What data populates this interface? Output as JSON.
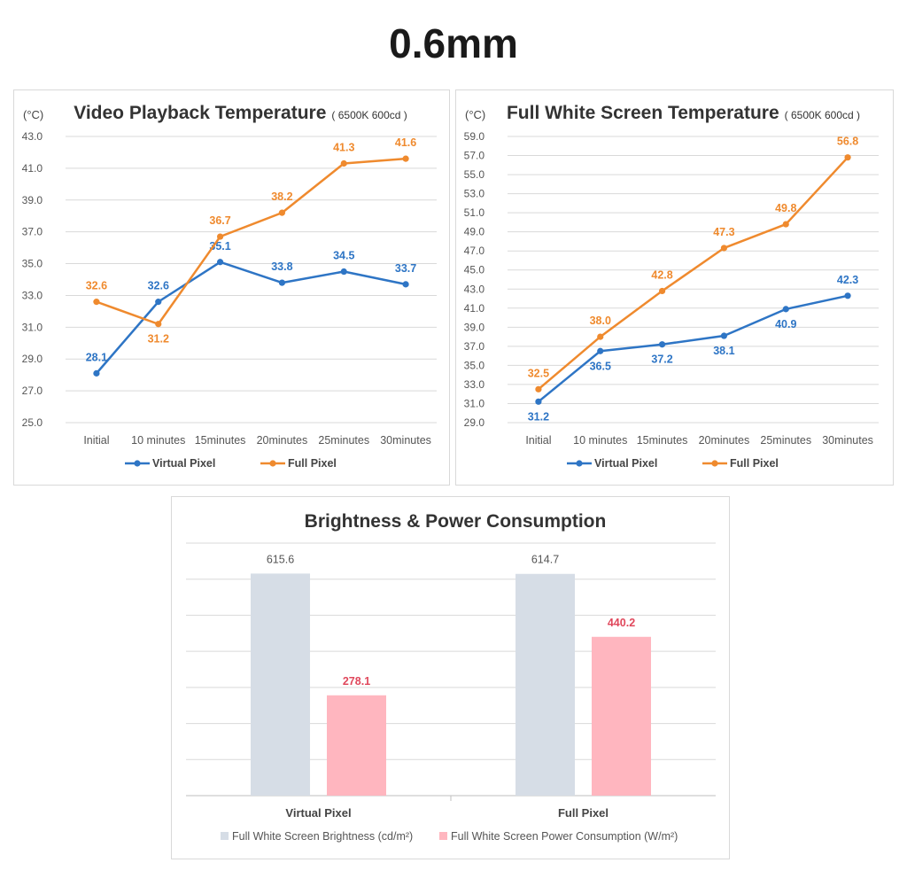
{
  "page_title": "0.6mm",
  "colors": {
    "virtual": "#2e75c5",
    "full": "#ef8a2e",
    "brightness": "#d6dde6",
    "power": "#ffb6bf",
    "power_label": "#e0485c",
    "grid": "#d9d9d9"
  },
  "chart_data": [
    {
      "type": "line",
      "title": "Video Playback Temperature",
      "subtitle": "( 6500K 600cd )",
      "ylabel": "(°C)",
      "xlabel": "",
      "ylim": [
        25.0,
        43.0
      ],
      "ytick_step": 2,
      "categories": [
        "Initial",
        "10 minutes",
        "15minutes",
        "20minutes",
        "25minutes",
        "30minutes"
      ],
      "series": [
        {
          "name": "Virtual Pixel",
          "values": [
            28.1,
            32.6,
            35.1,
            33.8,
            34.5,
            33.7
          ],
          "label_pos": [
            "above",
            "above",
            "above",
            "above",
            "above",
            "above"
          ]
        },
        {
          "name": "Full Pixel",
          "values": [
            32.6,
            31.2,
            36.7,
            38.2,
            41.3,
            41.6
          ],
          "label_pos": [
            "above",
            "below",
            "above",
            "above",
            "above",
            "above"
          ]
        }
      ],
      "legend": "bottom",
      "grid": true
    },
    {
      "type": "line",
      "title": "Full White Screen Temperature",
      "subtitle": "( 6500K 600cd )",
      "ylabel": "(°C)",
      "xlabel": "",
      "ylim": [
        29.0,
        59.0
      ],
      "ytick_step": 2,
      "categories": [
        "Initial",
        "10 minutes",
        "15minutes",
        "20minutes",
        "25minutes",
        "30minutes"
      ],
      "series": [
        {
          "name": "Virtual Pixel",
          "values": [
            31.2,
            36.5,
            37.2,
            38.1,
            40.9,
            42.3
          ],
          "label_pos": [
            "below",
            "below",
            "below",
            "below",
            "below",
            "above"
          ]
        },
        {
          "name": "Full Pixel",
          "values": [
            32.5,
            38.0,
            42.8,
            47.3,
            49.8,
            56.8
          ],
          "label_pos": [
            "above",
            "above",
            "above",
            "above",
            "above",
            "above"
          ]
        }
      ],
      "legend": "bottom",
      "grid": true
    },
    {
      "type": "bar",
      "title": "Brightness & Power Consumption",
      "xlabel": "",
      "ylabel": "",
      "ylim": [
        0,
        700
      ],
      "categories": [
        "Virtual Pixel",
        "Full Pixel"
      ],
      "series": [
        {
          "name": "Full White Screen Brightness (cd/m²)",
          "values": [
            615.6,
            614.7
          ]
        },
        {
          "name": "Full White Screen Power Consumption (W/m²)",
          "values": [
            278.1,
            440.2
          ]
        }
      ],
      "legend": "bottom",
      "grid": true
    }
  ]
}
